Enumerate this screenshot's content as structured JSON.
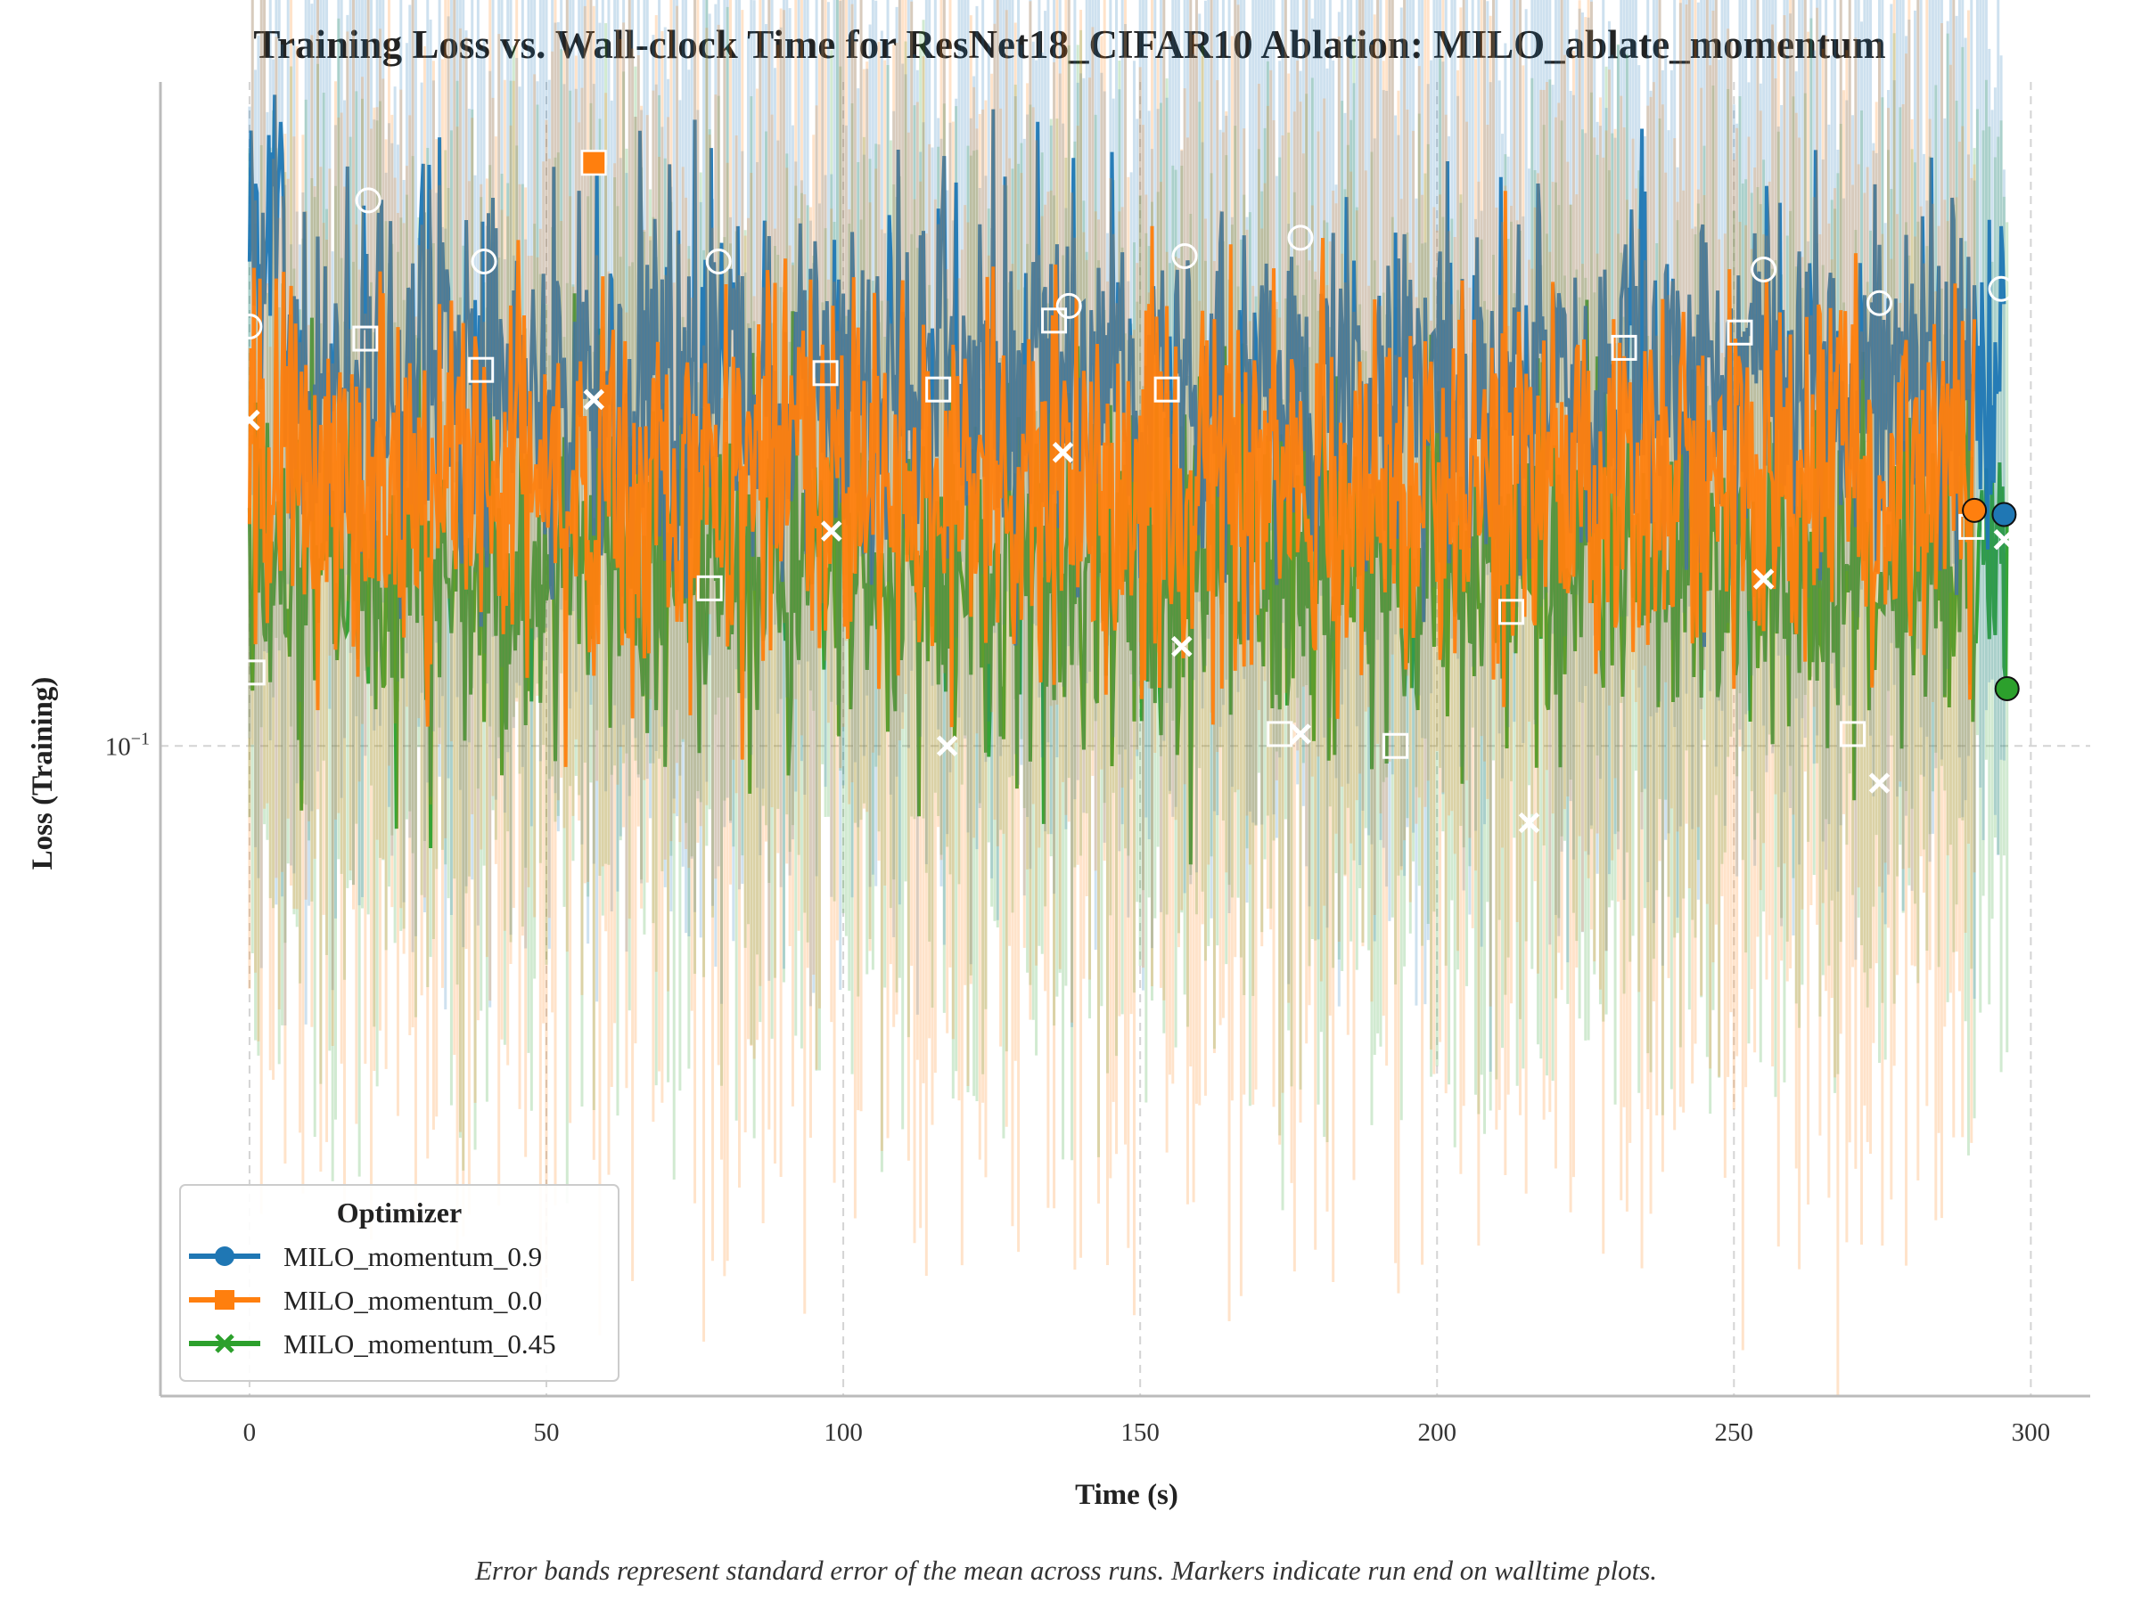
{
  "chart_data": {
    "type": "line",
    "title": "Training Loss vs. Wall-clock Time for ResNet18_CIFAR10 Ablation: MILO_ablate_momentum",
    "xlabel": "Time (s)",
    "ylabel": "Loss (Training)",
    "xlim": [
      -15,
      310
    ],
    "ylim_log10": [
      -1.47,
      -0.52
    ],
    "y_scale": "log",
    "x_ticks": [
      0,
      50,
      100,
      150,
      200,
      250,
      300
    ],
    "x_tick_labels": [
      "0",
      "50",
      "100",
      "150",
      "200",
      "250",
      "300"
    ],
    "y_tick_label": {
      "base": "10",
      "exponent": "−1"
    },
    "y_tick_value": 0.1,
    "grid": true,
    "legend_title": "Optimizer",
    "legend_position": "lower-left",
    "caption": "Error bands represent standard error of the mean across runs. Markers indicate run end on walltime plots.",
    "series": [
      {
        "name": "MILO_momentum_0.9",
        "color": "#1f77b4",
        "marker": "circle",
        "end_time": 295.5,
        "end_value": 0.147,
        "mean_band": [
          0.12,
          0.28
        ],
        "markers": [
          [
            0,
            0.201
          ],
          [
            20,
            0.248
          ],
          [
            39.5,
            0.224
          ],
          [
            79,
            0.224
          ],
          [
            138,
            0.208
          ],
          [
            157.5,
            0.226
          ],
          [
            177,
            0.233
          ],
          [
            255,
            0.221
          ],
          [
            274.5,
            0.209
          ],
          [
            295,
            0.214
          ]
        ]
      },
      {
        "name": "MILO_momentum_0.0",
        "color": "#ff7f0e",
        "marker": "square",
        "end_time": 290.5,
        "end_value": 0.148,
        "mean_band": [
          0.1,
          0.24
        ],
        "markers": [
          [
            0.5,
            0.113
          ],
          [
            19.5,
            0.197
          ],
          [
            39,
            0.187
          ],
          [
            58,
            0.264
          ],
          [
            77.5,
            0.13
          ],
          [
            97,
            0.186
          ],
          [
            116,
            0.181
          ],
          [
            135.5,
            0.203
          ],
          [
            154.5,
            0.181
          ],
          [
            173.5,
            0.102
          ],
          [
            193,
            0.1
          ],
          [
            212.5,
            0.125
          ],
          [
            231.5,
            0.194
          ],
          [
            251,
            0.199
          ],
          [
            270,
            0.102
          ],
          [
            290,
            0.144
          ]
        ]
      },
      {
        "name": "MILO_momentum_0.45",
        "color": "#2ca02c",
        "marker": "x",
        "end_time": 296,
        "end_value": 0.11,
        "mean_band": [
          0.09,
          0.2
        ],
        "markers": [
          [
            0,
            0.172
          ],
          [
            58,
            0.178
          ],
          [
            98,
            0.143
          ],
          [
            117.5,
            0.1
          ],
          [
            137,
            0.163
          ],
          [
            157,
            0.118
          ],
          [
            177,
            0.102
          ],
          [
            215.5,
            0.088
          ],
          [
            255,
            0.132
          ],
          [
            274.5,
            0.094
          ],
          [
            295.5,
            0.141
          ]
        ]
      }
    ]
  }
}
